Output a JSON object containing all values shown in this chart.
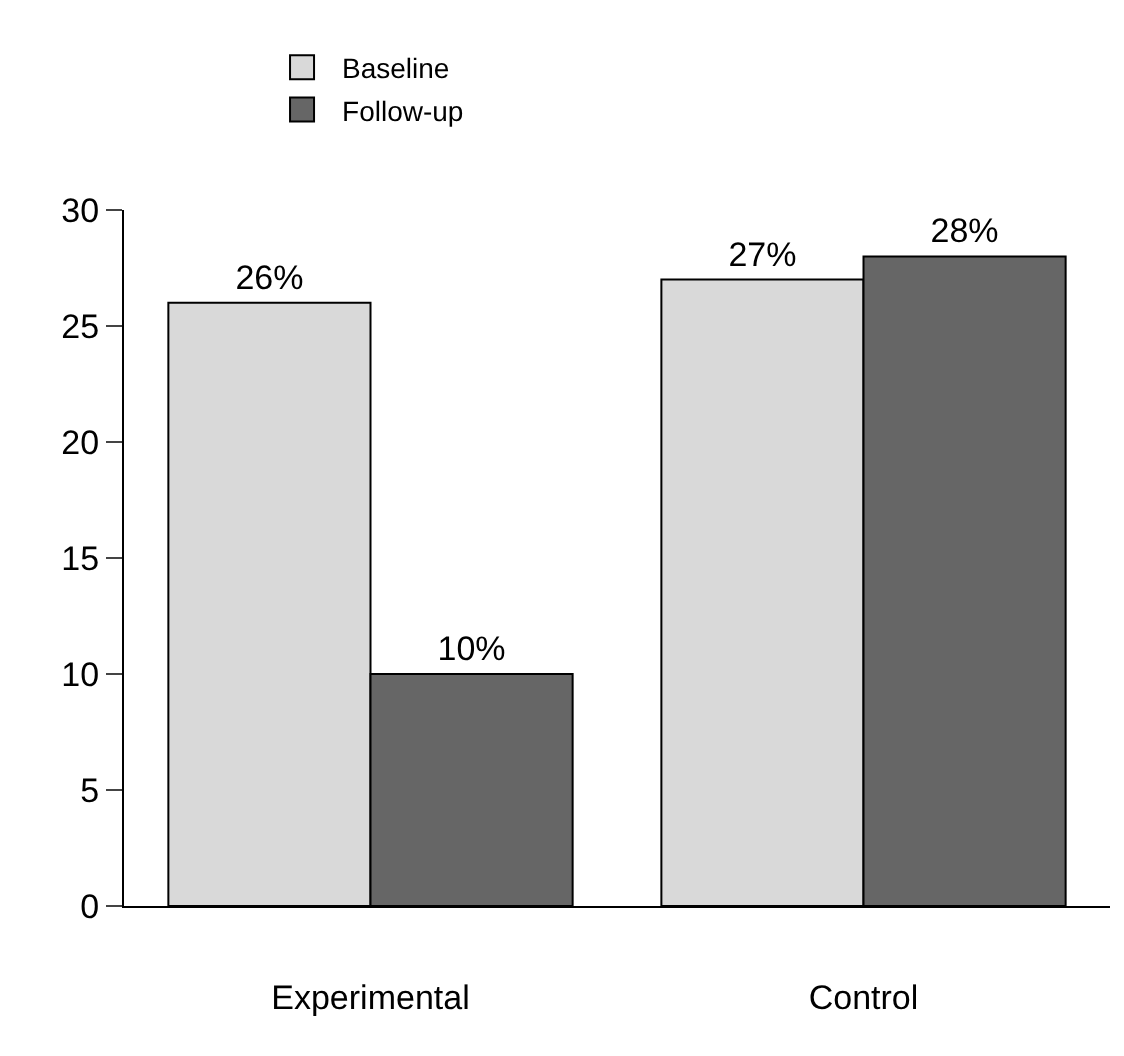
{
  "chart_data": {
    "type": "bar",
    "categories": [
      "Experimental",
      "Control"
    ],
    "series": [
      {
        "name": "Baseline",
        "color": "#d9d9d9",
        "values": [
          26,
          27
        ],
        "value_labels": [
          "26%",
          "27%"
        ]
      },
      {
        "name": "Follow-up",
        "color": "#666666",
        "values": [
          10,
          28
        ],
        "value_labels": [
          "10%",
          "28%"
        ]
      }
    ],
    "ylim": [
      0,
      30
    ],
    "yticks": [
      0,
      5,
      10,
      15,
      20,
      25,
      30
    ],
    "grid": false,
    "legend": "top left"
  }
}
